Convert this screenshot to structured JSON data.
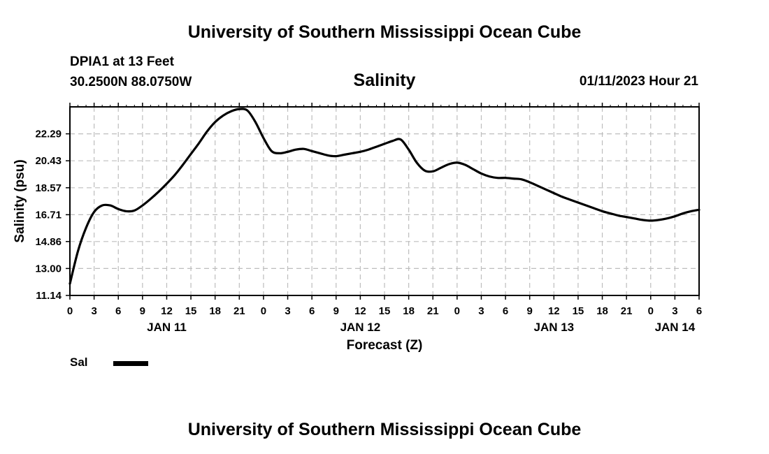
{
  "header": {
    "title": "University of Southern Mississippi Ocean Cube",
    "station": "DPIA1 at 13 Feet",
    "coords": "30.2500N  88.0750W",
    "subtitle": "Salinity",
    "timestamp": "01/11/2023 Hour 21"
  },
  "footer": {
    "title": "University of Southern Mississippi Ocean Cube"
  },
  "legend": {
    "label": "Sal",
    "color": "#000000"
  },
  "chart_data": {
    "type": "line",
    "title": "Salinity",
    "xlabel": "Forecast (Z)",
    "ylabel": "Salinity (psu)",
    "x_units": "hours since JAN 11 00Z",
    "xlim": [
      0,
      78
    ],
    "ylim": [
      11.14,
      24.15
    ],
    "grid": true,
    "y_ticks": [
      "11.14",
      "13.00",
      "14.86",
      "16.71",
      "18.57",
      "20.43",
      "22.29"
    ],
    "x_ticks": [
      "0",
      "3",
      "6",
      "9",
      "12",
      "15",
      "18",
      "21",
      "0",
      "3",
      "6",
      "9",
      "12",
      "15",
      "18",
      "21",
      "0",
      "3",
      "6",
      "9",
      "12",
      "15",
      "18",
      "21",
      "0",
      "3",
      "6"
    ],
    "date_labels": [
      {
        "label": "JAN 11",
        "x": 12
      },
      {
        "label": "JAN 12",
        "x": 36
      },
      {
        "label": "JAN 13",
        "x": 60
      },
      {
        "label": "JAN 14",
        "x": 75
      }
    ],
    "series": [
      {
        "name": "Sal",
        "color": "#000000",
        "x": [
          0,
          1,
          2,
          3,
          4,
          5,
          6,
          7,
          8,
          9,
          10,
          11,
          12,
          13,
          14,
          15,
          16,
          17,
          18,
          19,
          20,
          21,
          22,
          23,
          24,
          25,
          26,
          27,
          28,
          29,
          30,
          31,
          32,
          33,
          34,
          35,
          36,
          37,
          38,
          39,
          40,
          41,
          42,
          43,
          44,
          45,
          46,
          47,
          48,
          49,
          50,
          51,
          52,
          53,
          54,
          55,
          56,
          57,
          58,
          59,
          60,
          61,
          62,
          63,
          64,
          65,
          66,
          67,
          68,
          69,
          70,
          71,
          72,
          73,
          74,
          75,
          76,
          77,
          78
        ],
        "values": [
          11.95,
          14.2,
          15.8,
          16.9,
          17.35,
          17.35,
          17.1,
          16.95,
          17.0,
          17.35,
          17.8,
          18.3,
          18.85,
          19.45,
          20.15,
          20.9,
          21.65,
          22.45,
          23.1,
          23.55,
          23.85,
          24.0,
          23.9,
          23.1,
          22.0,
          21.1,
          20.95,
          21.05,
          21.2,
          21.25,
          21.1,
          20.95,
          20.8,
          20.75,
          20.85,
          20.95,
          21.05,
          21.2,
          21.4,
          21.6,
          21.8,
          21.9,
          21.2,
          20.3,
          19.75,
          19.7,
          19.95,
          20.2,
          20.3,
          20.15,
          19.85,
          19.55,
          19.35,
          19.25,
          19.25,
          19.2,
          19.15,
          18.95,
          18.7,
          18.45,
          18.2,
          17.95,
          17.75,
          17.55,
          17.35,
          17.15,
          16.95,
          16.8,
          16.65,
          16.55,
          16.45,
          16.35,
          16.3,
          16.35,
          16.45,
          16.6,
          16.8,
          16.95,
          17.05
        ]
      }
    ]
  }
}
